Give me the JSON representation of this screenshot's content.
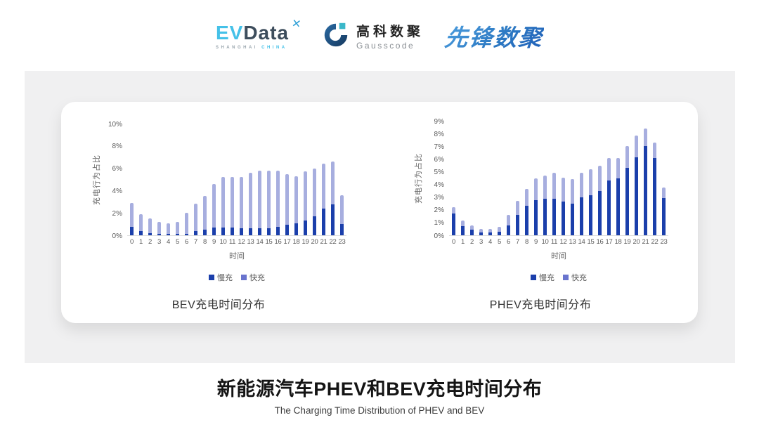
{
  "header": {
    "evdata": {
      "ev": "EV",
      "data": "Data",
      "x_mark": "✕",
      "sub_left": "SHANGHAI",
      "sub_right": "CHINA"
    },
    "gausscode": {
      "cn": "高科数聚",
      "en": "Gausscode"
    },
    "pioneer": {
      "text": "先锋数聚"
    }
  },
  "footer": {
    "title": "新能源汽车PHEV和BEV充电时间分布",
    "subtitle": "The Charging Time Distribution of PHEV and BEV"
  },
  "colors": {
    "slow": "#1B3FAB",
    "fast_bar": "#A7AEDF",
    "fast_legend": "#6974CE",
    "band_bg": "#F0F0F1",
    "axis_line": "#DCDCDC"
  },
  "chart_data": [
    {
      "type": "bar",
      "stacked": true,
      "title": "BEV充电时间分布",
      "xlabel": "时间",
      "ylabel": "充电行为占比",
      "ylim": [
        0,
        10
      ],
      "ytick_step": 2,
      "yunit": "%",
      "grid": false,
      "legend_position": "bottom",
      "categories": [
        "0",
        "1",
        "2",
        "3",
        "4",
        "5",
        "6",
        "7",
        "8",
        "9",
        "10",
        "11",
        "12",
        "13",
        "14",
        "15",
        "16",
        "17",
        "18",
        "19",
        "20",
        "21",
        "22",
        "23"
      ],
      "series": [
        {
          "name": "慢充",
          "color": "#1B3FAB",
          "bar_color": "#1B3FAB",
          "values": [
            0.75,
            0.35,
            0.2,
            0.15,
            0.1,
            0.1,
            0.15,
            0.35,
            0.5,
            0.7,
            0.7,
            0.7,
            0.65,
            0.65,
            0.65,
            0.65,
            0.75,
            0.95,
            1.1,
            1.35,
            1.7,
            2.4,
            2.8,
            1.0
          ]
        },
        {
          "name": "快充",
          "color": "#6974CE",
          "bar_color": "#A7AEDF",
          "values": [
            2.15,
            1.55,
            1.3,
            1.05,
            1.0,
            1.1,
            1.85,
            2.45,
            3.0,
            3.9,
            4.5,
            4.5,
            4.55,
            4.95,
            5.15,
            5.15,
            5.05,
            4.55,
            4.2,
            4.35,
            4.3,
            4.0,
            3.8,
            2.6
          ]
        }
      ]
    },
    {
      "type": "bar",
      "stacked": true,
      "title": "PHEV充电时间分布",
      "xlabel": "时间",
      "ylabel": "充电行为占比",
      "ylim": [
        0,
        9
      ],
      "ytick_step": 1,
      "yunit": "%",
      "grid": false,
      "legend_position": "bottom",
      "categories": [
        "0",
        "1",
        "2",
        "3",
        "4",
        "5",
        "6",
        "7",
        "8",
        "9",
        "10",
        "11",
        "12",
        "13",
        "14",
        "15",
        "16",
        "17",
        "18",
        "19",
        "20",
        "21",
        "22",
        "23"
      ],
      "series": [
        {
          "name": "慢充",
          "color": "#1B3FAB",
          "bar_color": "#1B3FAB",
          "values": [
            1.7,
            0.7,
            0.45,
            0.25,
            0.2,
            0.3,
            0.75,
            1.6,
            2.3,
            2.75,
            2.9,
            2.85,
            2.65,
            2.5,
            3.0,
            3.15,
            3.5,
            4.3,
            4.45,
            5.3,
            6.15,
            7.0,
            6.1,
            2.95
          ]
        },
        {
          "name": "快充",
          "color": "#6974CE",
          "bar_color": "#A7AEDF",
          "values": [
            0.5,
            0.45,
            0.3,
            0.25,
            0.3,
            0.35,
            0.85,
            1.1,
            1.35,
            1.7,
            1.8,
            2.05,
            1.9,
            1.9,
            1.9,
            2.05,
            1.95,
            1.75,
            1.65,
            1.7,
            1.7,
            1.4,
            1.2,
            0.8
          ]
        }
      ]
    }
  ]
}
